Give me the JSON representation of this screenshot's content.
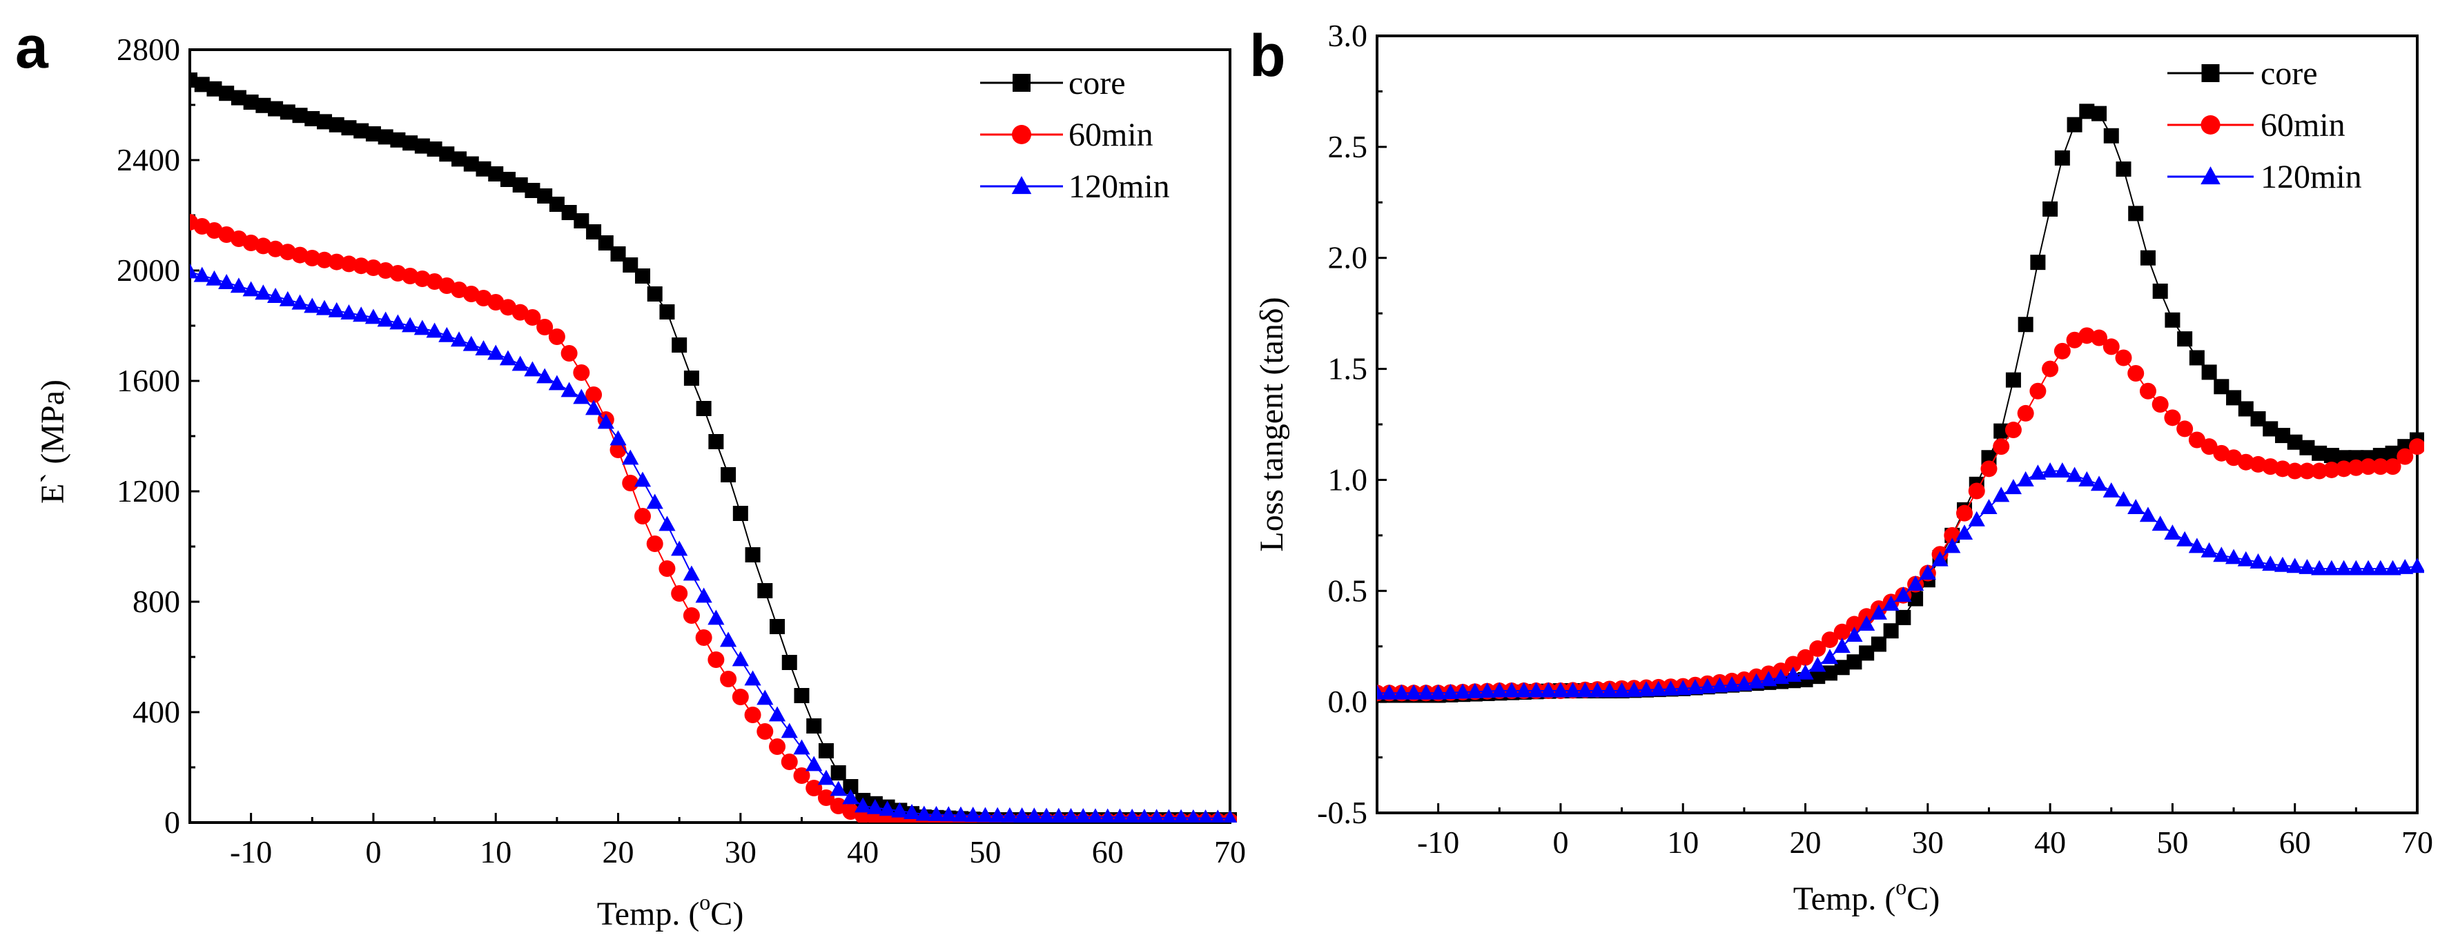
{
  "chart_data": [
    {
      "panel": "a",
      "type": "scatter",
      "title": "",
      "xlabel_prefix": "Temp. (",
      "xlabel_sup": "o",
      "xlabel_suffix": "C)",
      "ylabel": "E` (MPa)",
      "xlim": [
        -15,
        70
      ],
      "ylim": [
        0,
        2800
      ],
      "xticks": [
        -10,
        0,
        10,
        20,
        30,
        40,
        50,
        60,
        70
      ],
      "xtick_labels": [
        "-10",
        "0",
        "10",
        "20",
        "30",
        "40",
        "50",
        "60",
        "70"
      ],
      "yticks": [
        0,
        400,
        800,
        1200,
        1600,
        2000,
        2400,
        2800
      ],
      "ytick_labels": [
        "0",
        "400",
        "800",
        "1200",
        "1600",
        "2000",
        "2400",
        "2800"
      ],
      "legend_position": "top-right",
      "series": [
        {
          "name": "core",
          "color": "#000000",
          "marker": "square",
          "x": [
            -15,
            -10,
            -5,
            0,
            5,
            10,
            14,
            17,
            20,
            22,
            24,
            25,
            26,
            27,
            28,
            29,
            30,
            31,
            32,
            33,
            34,
            35,
            36,
            37,
            38,
            40,
            45,
            50,
            60,
            70
          ],
          "y": [
            2690,
            2610,
            2550,
            2495,
            2440,
            2350,
            2270,
            2180,
            2060,
            1980,
            1850,
            1730,
            1610,
            1500,
            1380,
            1260,
            1120,
            970,
            840,
            710,
            580,
            460,
            350,
            260,
            180,
            80,
            20,
            10,
            10,
            10
          ]
        },
        {
          "name": "60min",
          "color": "#ff0000",
          "marker": "circle",
          "x": [
            -15,
            -10,
            -5,
            0,
            5,
            10,
            13,
            15,
            16,
            17,
            18,
            19,
            20,
            21,
            22,
            23,
            24,
            25,
            26,
            27,
            28,
            29,
            30,
            31,
            32,
            33,
            34,
            35,
            36,
            37,
            38,
            39,
            40,
            42,
            45,
            50,
            60,
            70
          ],
          "y": [
            2175,
            2100,
            2045,
            2010,
            1960,
            1885,
            1830,
            1760,
            1700,
            1630,
            1550,
            1460,
            1350,
            1230,
            1110,
            1010,
            920,
            830,
            750,
            670,
            590,
            520,
            455,
            390,
            330,
            275,
            220,
            170,
            125,
            90,
            60,
            40,
            25,
            10,
            5,
            5,
            5,
            5
          ]
        },
        {
          "name": "120min",
          "color": "#0000ff",
          "marker": "triangle",
          "x": [
            -15,
            -10,
            -5,
            0,
            5,
            10,
            13,
            15,
            17,
            18,
            19,
            20,
            21,
            22,
            23,
            24,
            25,
            26,
            27,
            28,
            29,
            30,
            31,
            32,
            33,
            34,
            35,
            36,
            37,
            38,
            40,
            45,
            50,
            60,
            70
          ],
          "y": [
            1995,
            1930,
            1870,
            1830,
            1780,
            1700,
            1640,
            1590,
            1540,
            1500,
            1450,
            1390,
            1320,
            1240,
            1160,
            1080,
            990,
            900,
            820,
            740,
            660,
            590,
            520,
            450,
            390,
            330,
            270,
            210,
            160,
            120,
            60,
            30,
            25,
            20,
            15
          ]
        }
      ]
    },
    {
      "panel": "b",
      "type": "scatter",
      "title": "",
      "xlabel_prefix": "Temp. (",
      "xlabel_sup": "o",
      "xlabel_suffix": "C)",
      "ylabel": "Loss tangent (tanδ)",
      "xlim": [
        -15,
        70
      ],
      "ylim": [
        -0.5,
        3.0
      ],
      "xticks": [
        -10,
        0,
        10,
        20,
        30,
        40,
        50,
        60,
        70
      ],
      "xtick_labels": [
        "-10",
        "0",
        "10",
        "20",
        "30",
        "40",
        "50",
        "60",
        "70"
      ],
      "yticks": [
        -0.5,
        0.0,
        0.5,
        1.0,
        1.5,
        2.0,
        2.5,
        3.0
      ],
      "ytick_labels": [
        "-0.5",
        "0.0",
        "0.5",
        "1.0",
        "1.5",
        "2.0",
        "2.5",
        "3.0"
      ],
      "legend_position": "top-right",
      "series": [
        {
          "name": "core",
          "color": "#000000",
          "marker": "square",
          "x": [
            -15,
            -10,
            -5,
            0,
            5,
            10,
            15,
            20,
            22,
            24,
            26,
            28,
            30,
            32,
            34,
            36,
            37,
            38,
            39,
            40,
            41,
            42,
            43,
            44,
            45,
            46,
            47,
            48,
            49,
            50,
            52,
            54,
            56,
            58,
            60,
            62,
            64,
            66,
            68,
            70
          ],
          "y": [
            0.03,
            0.03,
            0.04,
            0.05,
            0.05,
            0.06,
            0.08,
            0.1,
            0.13,
            0.18,
            0.26,
            0.38,
            0.55,
            0.75,
            0.98,
            1.22,
            1.45,
            1.7,
            1.98,
            2.22,
            2.45,
            2.6,
            2.66,
            2.65,
            2.55,
            2.4,
            2.2,
            2.0,
            1.85,
            1.72,
            1.55,
            1.42,
            1.32,
            1.23,
            1.17,
            1.12,
            1.1,
            1.1,
            1.12,
            1.18
          ]
        },
        {
          "name": "60min",
          "color": "#ff0000",
          "marker": "circle",
          "x": [
            -15,
            -10,
            -5,
            0,
            5,
            10,
            15,
            18,
            20,
            22,
            24,
            26,
            28,
            30,
            32,
            34,
            36,
            38,
            39,
            40,
            41,
            42,
            43,
            44,
            45,
            46,
            47,
            48,
            50,
            52,
            54,
            56,
            58,
            60,
            62,
            64,
            66,
            68,
            70
          ],
          "y": [
            0.04,
            0.04,
            0.05,
            0.05,
            0.06,
            0.07,
            0.1,
            0.14,
            0.2,
            0.28,
            0.35,
            0.42,
            0.48,
            0.58,
            0.75,
            0.95,
            1.15,
            1.3,
            1.4,
            1.5,
            1.58,
            1.63,
            1.65,
            1.64,
            1.6,
            1.55,
            1.48,
            1.4,
            1.28,
            1.18,
            1.12,
            1.08,
            1.06,
            1.04,
            1.04,
            1.05,
            1.06,
            1.06,
            1.15
          ]
        },
        {
          "name": "120min",
          "color": "#0000ff",
          "marker": "triangle",
          "x": [
            -15,
            -10,
            -5,
            0,
            5,
            10,
            15,
            20,
            22,
            24,
            26,
            28,
            30,
            32,
            34,
            36,
            38,
            39,
            40,
            41,
            42,
            43,
            44,
            45,
            46,
            48,
            50,
            52,
            54,
            56,
            58,
            60,
            62,
            64,
            66,
            68,
            70
          ],
          "y": [
            0.04,
            0.04,
            0.05,
            0.05,
            0.05,
            0.06,
            0.08,
            0.13,
            0.2,
            0.3,
            0.4,
            0.48,
            0.58,
            0.7,
            0.82,
            0.93,
            1.0,
            1.03,
            1.04,
            1.04,
            1.02,
            1.0,
            0.98,
            0.95,
            0.91,
            0.84,
            0.76,
            0.7,
            0.66,
            0.64,
            0.62,
            0.61,
            0.6,
            0.6,
            0.6,
            0.6,
            0.61
          ]
        }
      ]
    }
  ],
  "panel_labels": {
    "a": "a",
    "b": "b"
  }
}
